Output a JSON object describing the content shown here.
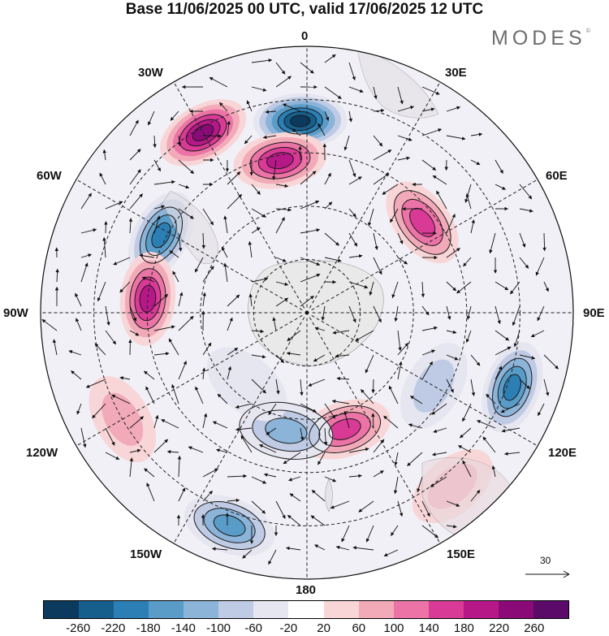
{
  "title": "Base 11/06/2025 00 UTC, valid 17/06/2025 12 UTC",
  "logo": "MODES",
  "logo_mark": "©",
  "lon_labels": {
    "top": "0",
    "bottom": "180",
    "left": "90W",
    "right": "90E",
    "nw30": "30W",
    "ne30": "30E",
    "nw60": "60W",
    "ne60": "60E",
    "sw120": "120W",
    "se120": "120E",
    "sw150": "150W",
    "se150": "150E"
  },
  "vector_scale": {
    "label": "30",
    "value": 30
  },
  "colorbar": {
    "colors": [
      "#0b3a5e",
      "#165f8c",
      "#2b7fb4",
      "#5a9cc8",
      "#8cb3d8",
      "#bfcbe4",
      "#e6e6f1",
      "#ffffff",
      "#f8d6d8",
      "#f2aab9",
      "#ec73a6",
      "#d93a96",
      "#b71888",
      "#8a0a78",
      "#5c0a6a"
    ],
    "ticks": [
      "-260",
      "-220",
      "-180",
      "-140",
      "-100",
      "-60",
      "-20",
      "20",
      "60",
      "100",
      "140",
      "180",
      "220",
      "260"
    ]
  },
  "anomalies": [
    {
      "lon": 358,
      "r": 0.72,
      "value": -260
    },
    {
      "lon": 330,
      "r": 0.78,
      "value": 230
    },
    {
      "lon": 350,
      "r": 0.58,
      "value": 200
    },
    {
      "lon": 298,
      "r": 0.62,
      "value": -180
    },
    {
      "lon": 275,
      "r": 0.6,
      "value": 200
    },
    {
      "lon": 52,
      "r": 0.55,
      "value": 160
    },
    {
      "lon": 110,
      "r": 0.82,
      "value": -180
    },
    {
      "lon": 162,
      "r": 0.46,
      "value": 160
    },
    {
      "lon": 190,
      "r": 0.45,
      "value": -130
    },
    {
      "lon": 200,
      "r": 0.85,
      "value": -170
    },
    {
      "lon": 240,
      "r": 0.8,
      "value": 80
    },
    {
      "lon": 140,
      "r": 0.85,
      "value": 80
    },
    {
      "lon": 120,
      "r": 0.55,
      "value": -60
    },
    {
      "lon": 220,
      "r": 0.35,
      "value": -40
    }
  ]
}
